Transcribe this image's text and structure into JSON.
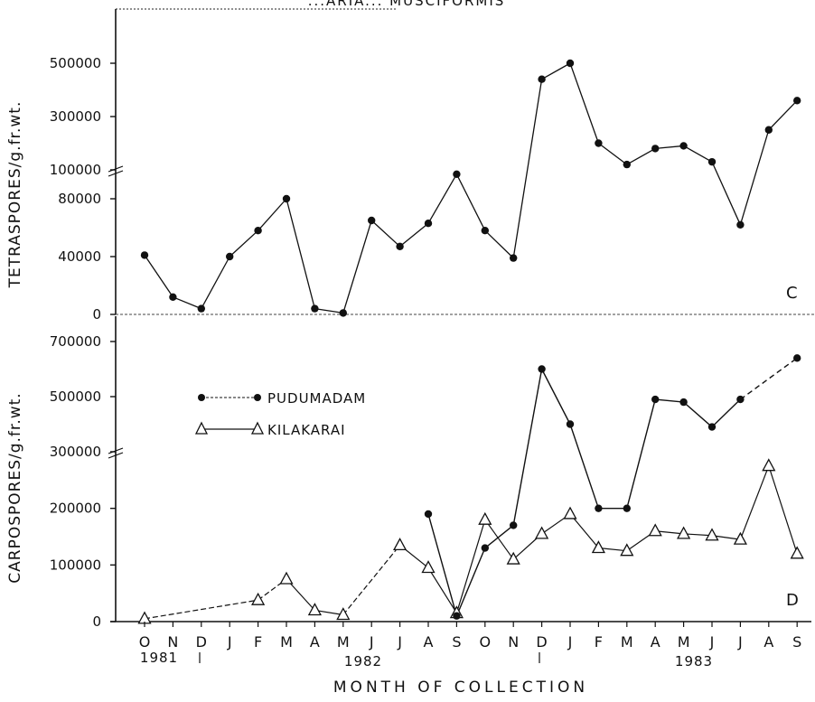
{
  "figure": {
    "top_title": "...ARIA... MUSCIFORMIS",
    "xlabel": "MONTH OF COLLECTION",
    "months": [
      "O",
      "N",
      "D",
      "J",
      "F",
      "M",
      "A",
      "M",
      "J",
      "J",
      "A",
      "S",
      "O",
      "N",
      "D",
      "J",
      "F",
      "M",
      "A",
      "M",
      "J",
      "J",
      "A",
      "S"
    ],
    "years": [
      "1981",
      "1982",
      "1983"
    ]
  },
  "chart_data": [
    {
      "type": "line",
      "panel_label": "C",
      "ylabel": "TETRASPORES/g.fr.wt.",
      "ytick_labels": [
        "0",
        "40000",
        "80000",
        "100000",
        "300000",
        "500000"
      ],
      "broken_axis": true,
      "series": [
        {
          "marker": "filled-circle",
          "values": [
            41000,
            12000,
            4000,
            40000,
            58000,
            80000,
            4000,
            1000,
            65000,
            47000,
            63000,
            97000,
            58000,
            39000,
            440000,
            500000,
            200000,
            120000,
            180000,
            190000,
            130000,
            62000,
            250000,
            360000
          ]
        }
      ]
    },
    {
      "type": "line",
      "panel_label": "D",
      "ylabel": "CARPOSPORES/g.fr.wt.",
      "ytick_labels": [
        "0",
        "100000",
        "200000",
        "300000",
        "500000",
        "700000"
      ],
      "broken_axis": true,
      "series": [
        {
          "name": "PUDUMADAM",
          "marker": "filled-circle",
          "values": [
            null,
            null,
            null,
            null,
            null,
            null,
            null,
            null,
            null,
            null,
            190000,
            10000,
            130000,
            170000,
            600000,
            400000,
            200000,
            200000,
            490000,
            480000,
            390000,
            490000,
            null,
            640000
          ]
        },
        {
          "name": "KILAKARAI",
          "marker": "open-triangle",
          "values": [
            5000,
            null,
            null,
            null,
            38000,
            75000,
            20000,
            12000,
            null,
            135000,
            95000,
            15000,
            180000,
            110000,
            155000,
            190000,
            130000,
            125000,
            160000,
            155000,
            152000,
            145000,
            275000,
            120000
          ]
        }
      ]
    }
  ]
}
